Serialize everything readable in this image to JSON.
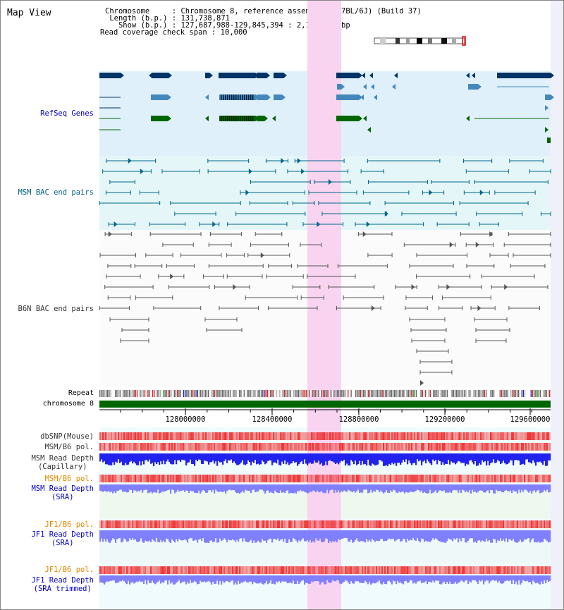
{
  "panel_title": "Map View",
  "info_lines": {
    "chromosome": "Chromosome     : Chromosome 8, reference assembly (C57BL/6J) (Build 37)",
    "length": " Length (b.p.) : 131,738,871",
    "show": "   Show (b.p.) : 127,687,988-129,845,394 : 2,157,407 bp",
    "coverage": "Read coverage check span : 10,000"
  },
  "tracks": {
    "refseq": "RefSeq Genes",
    "msm_bac": "MSM BAC end pairs",
    "b6n_bac": "B6N BAC end pairs",
    "repeat": "Repeat",
    "chromosome": "chromosome 8",
    "dbsnp": "dbSNP(Mouse)",
    "msm_b6_pol_1": "MSM/B6 pol.",
    "msm_depth_cap_1": "MSM Read Depth",
    "msm_depth_cap_2": "(Capillary)",
    "msm_b6_pol_2": "MSM/B6 pol.",
    "msm_depth_sra_1": "MSM Read Depth",
    "msm_depth_sra_2": "(SRA)",
    "jf1_b6_pol_1": "JF1/B6 pol.",
    "jf1_depth_sra_1": "JF1 Read Depth",
    "jf1_depth_sra_2": "(SRA)",
    "jf1_b6_pol_2": "JF1/B6 pol.",
    "jf1_depth_trim_1": "JF1 Read Depth",
    "jf1_depth_trim_2": "(SRA trimmed)"
  },
  "axis_ticks": [
    "128000000",
    "128400000",
    "128800000",
    "129200000",
    "129600000"
  ],
  "colors": {
    "refseq_bg": "#dff0fa",
    "bac_bg": "#e4f6f8",
    "highlight": "#f8d4f0",
    "gene_dark": "#003366",
    "gene_light": "#4488bb",
    "gene_green": "#006600",
    "msm_line": "#006688",
    "b6n_line": "#555555",
    "chrom_bar": "#006600",
    "snp_red": "#ee3333",
    "depth_blue": "#2222ee",
    "depth_light": "#8080ff"
  }
}
